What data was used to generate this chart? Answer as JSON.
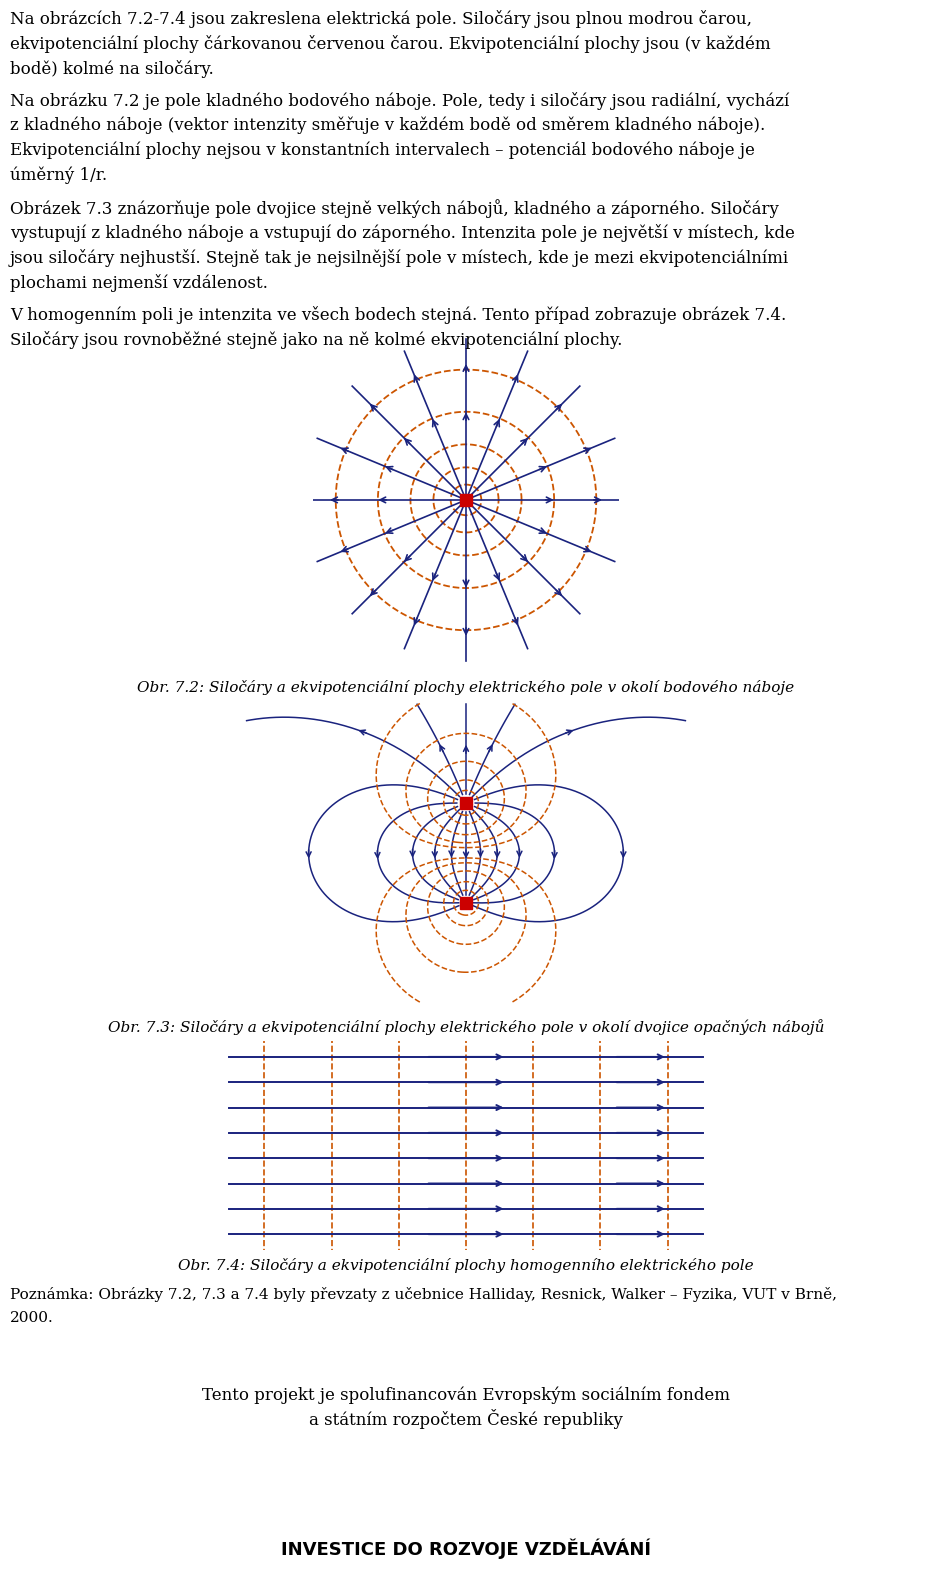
{
  "para1_line1": "Na obrázcích 7.2-7.4 jsou zakreslena elektrická pole. Siločáry jsou plnou modrou čarou,",
  "para1_line2": "ekvipotenciální plochy čárkovanou červenou čarou. Ekvipotenciální plochy jsou (v každém",
  "para1_line3": "bodě) kolmé na siločáry.",
  "para2_line1": "Na obrázku 7.2 je pole kladného bodového náboje. Pole, tedy i siločáry jsou radiální, vychází",
  "para2_line2": "z kladného náboje (vektor intenzity směřuje v každém bodě od směrem kladného náboje).",
  "para2_line3": "Ekvipotenciální plochy nejsou v konstantních intervalech – potenciál bodového náboje je",
  "para2_line4": "úměrný 1/r.",
  "para3_line1": "Obrázek 7.3 znázorňuje pole dvojice stejně velkých nábojů, kladného a záporného. Siločáry",
  "para3_line2": "vystupují z kladného náboje a vstupují do záporného. Intenzita pole je největší v místech, kde",
  "para3_line3": "jsou siločáry nejhustší. Stejně tak je nejsilnější pole v místech, kde je mezi ekvipotenciálními",
  "para3_line4": "plochami nejmenší vzdálenost.",
  "para4_line1": "V homogenním poli je intenzita ve všech bodech stejná. Tento případ zobrazuje obrázek 7.4.",
  "para4_line2": "Siločáry jsou rovnoběžné stejně jako na ně kolmé ekvipotenciální plochy.",
  "caption1": "Obr. 7.2: Siločáry a ekvipotenciální plochy elektrického pole v okolí bodového náboje",
  "caption2": "Obr. 7.3: Siločáry a ekvipotenciální plochy elektrického pole v okolí dvojice opačných nábojů",
  "caption3": "Obr. 7.4: Siločáry a ekvipotenciální plochy homogenního elektrického pole",
  "footnote_line1": "Poznámka: Obrázky 7.2, 7.3 a 7.4 byly převzaty z učebnice Halliday, Resnick, Walker – Fyzika, VUT v Brně,",
  "footnote_line2": "2000.",
  "footer1": "Tento projekt je spolufinancován Evropským sociálním fondem",
  "footer2": "a státním rozpočtem České republiky",
  "footer3": "INVESTICE DO ROZVOJE VZDĚLÁVÁNÍ",
  "blue": "#1a237e",
  "red_dot": "#cc0000",
  "orange_dashed": "#cc5500",
  "bg": "#ffffff",
  "text_fontsize": 12,
  "caption_fontsize": 11,
  "footnote_fontsize": 11,
  "footer_fontsize": 12
}
